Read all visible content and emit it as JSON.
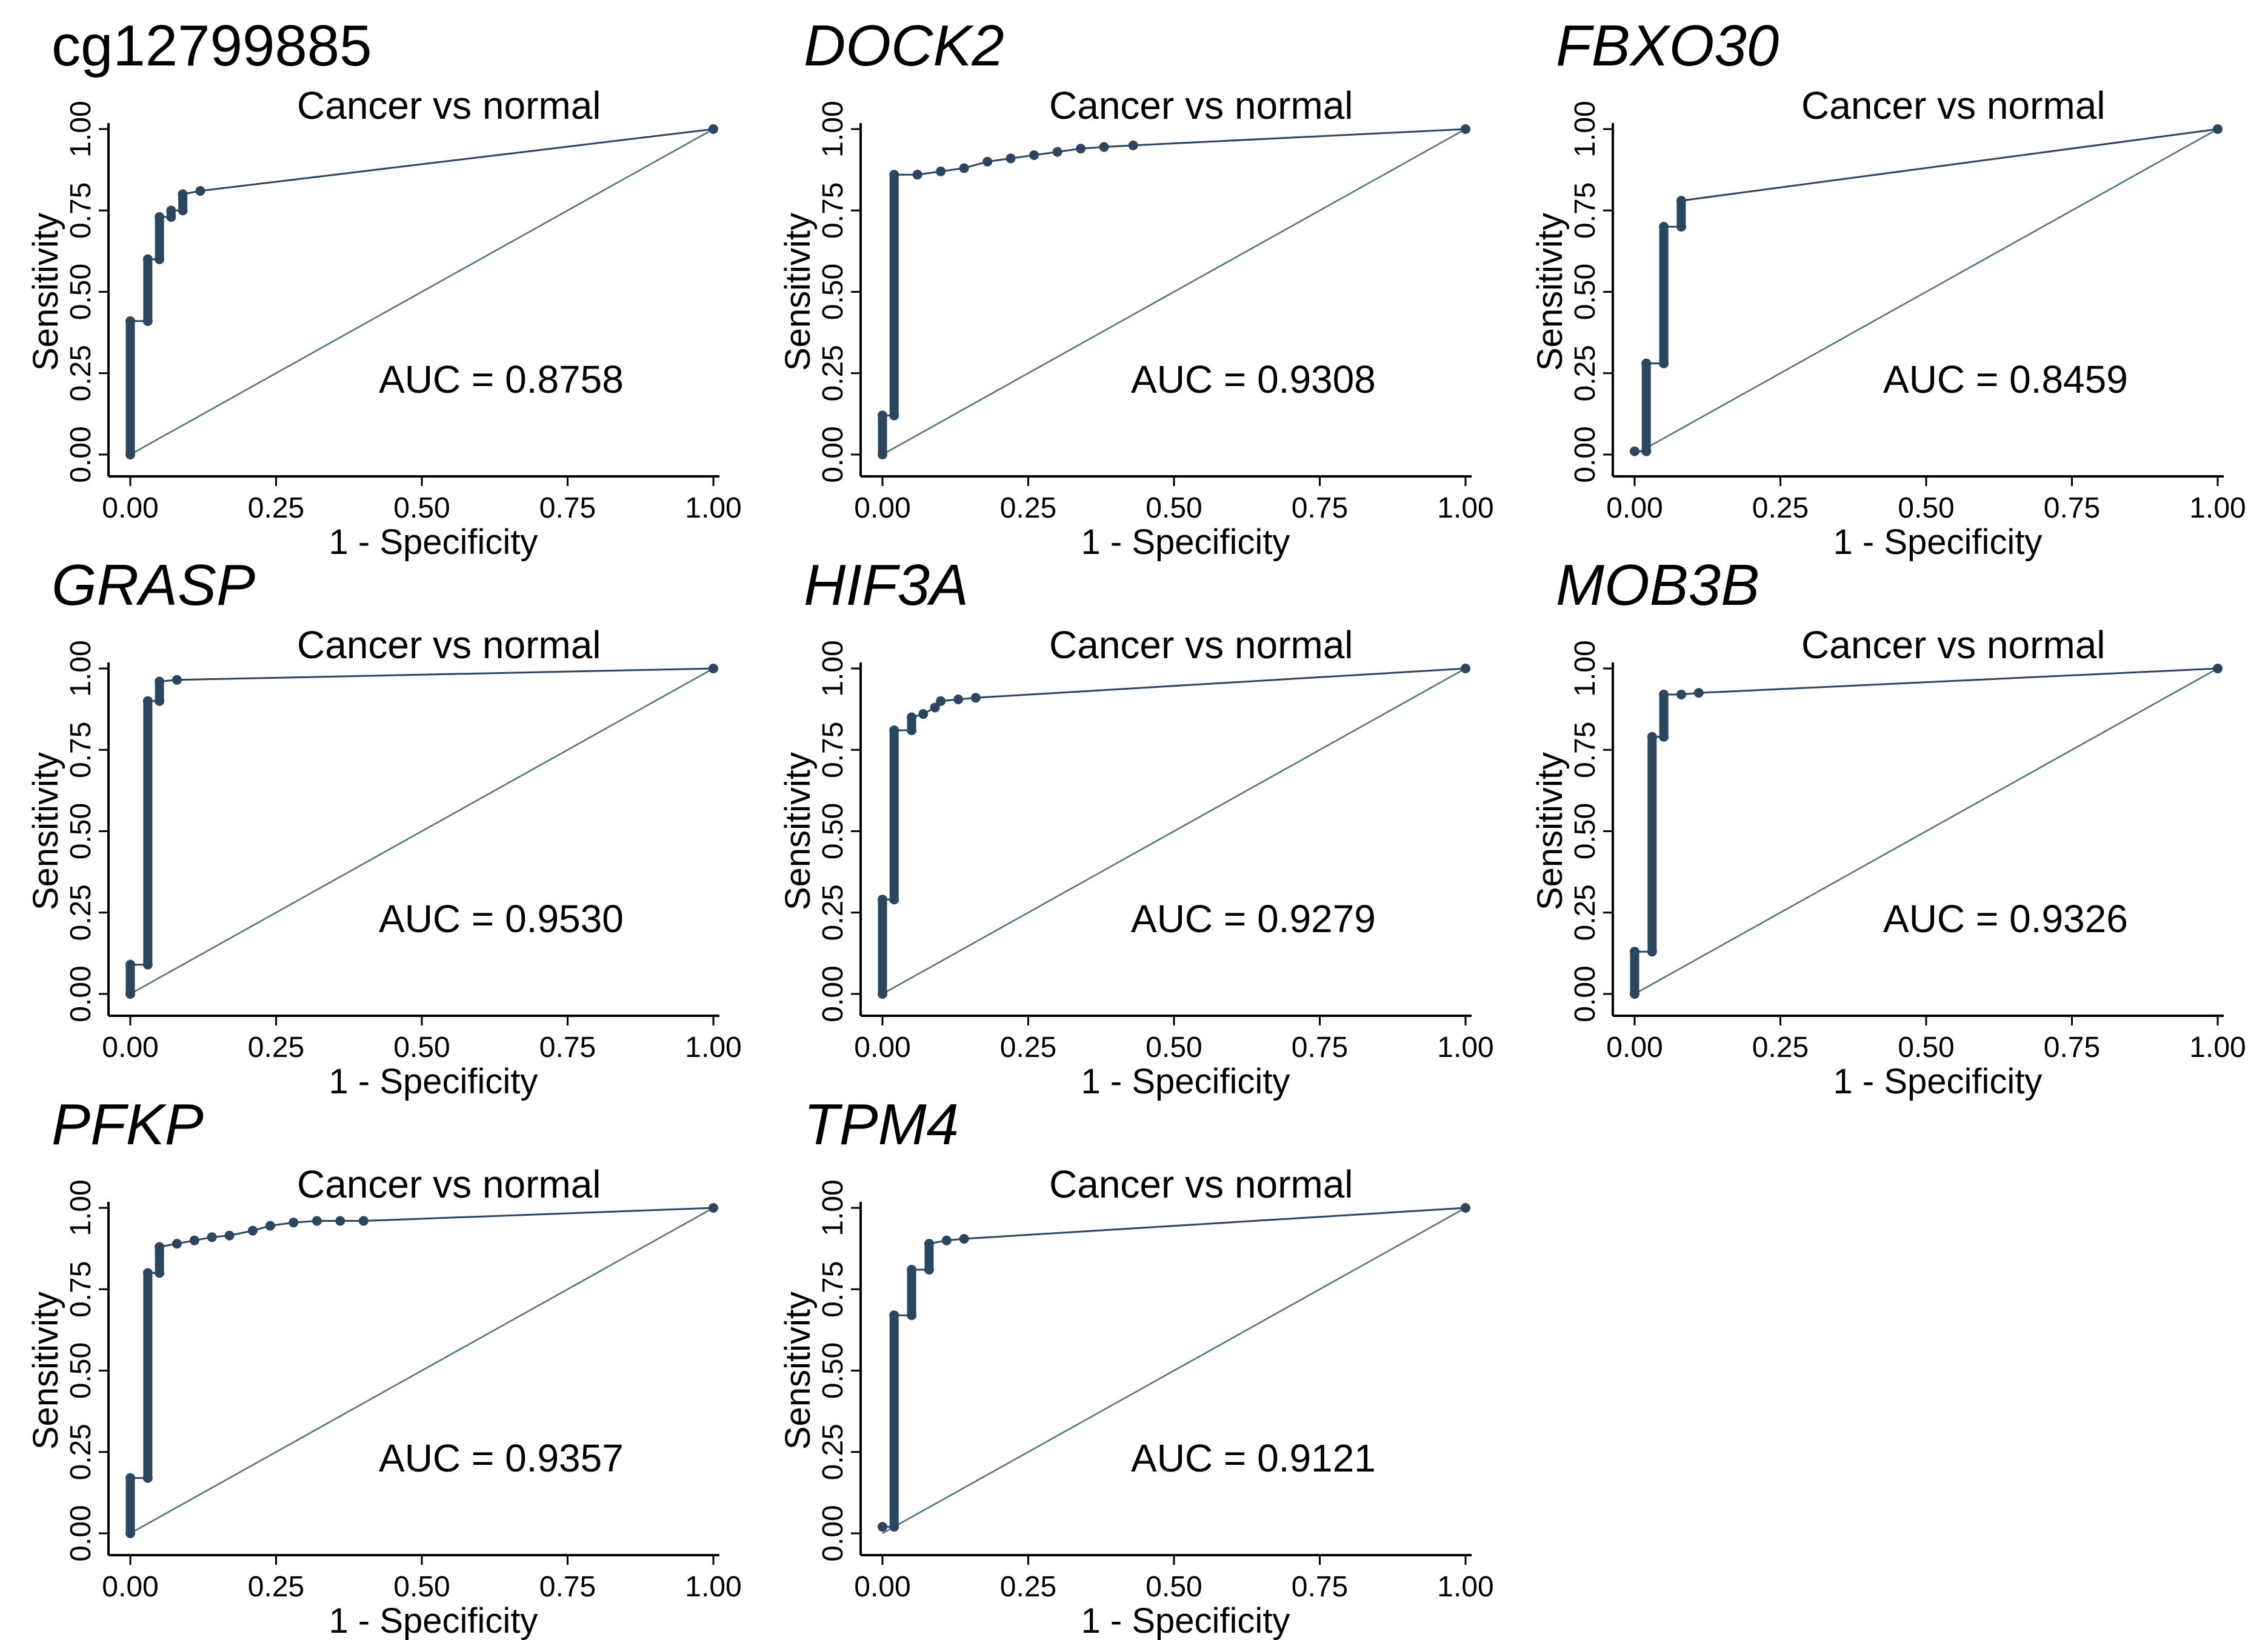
{
  "figure": {
    "colors": {
      "curve": "#2d4660",
      "diagonal": "#4f6f7d",
      "axis": "#000000"
    },
    "axis_ticks": [
      "0.00",
      "0.25",
      "0.50",
      "0.75",
      "1.00"
    ],
    "xlabel": "1 - Specificity",
    "ylabel": "Sensitivity"
  },
  "chart_data": [
    {
      "type": "line",
      "title": "cg12799885",
      "title_italic": false,
      "subtitle": "Cancer vs normal",
      "auc_text": "AUC = 0.8758",
      "xlabel": "1 - Specificity",
      "ylabel": "Sensitivity",
      "xlim": [
        0,
        1
      ],
      "ylim": [
        0,
        1
      ],
      "points": [
        [
          0,
          0
        ],
        [
          0,
          0.41
        ],
        [
          0.03,
          0.41
        ],
        [
          0.03,
          0.6
        ],
        [
          0.05,
          0.6
        ],
        [
          0.05,
          0.73
        ],
        [
          0.07,
          0.73
        ],
        [
          0.07,
          0.75
        ],
        [
          0.09,
          0.75
        ],
        [
          0.09,
          0.8
        ],
        [
          0.12,
          0.81
        ],
        [
          1,
          1
        ]
      ],
      "series": [
        {
          "name": "ROC",
          "values": "points"
        },
        {
          "name": "Reference",
          "values": [
            [
              0,
              0
            ],
            [
              1,
              1
            ]
          ]
        }
      ]
    },
    {
      "type": "line",
      "title": "DOCK2",
      "title_italic": true,
      "subtitle": "Cancer vs normal",
      "auc_text": "AUC = 0.9308",
      "xlabel": "1 - Specificity",
      "ylabel": "Sensitivity",
      "xlim": [
        0,
        1
      ],
      "ylim": [
        0,
        1
      ],
      "points": [
        [
          0,
          0
        ],
        [
          0,
          0.12
        ],
        [
          0.02,
          0.12
        ],
        [
          0.02,
          0.86
        ],
        [
          0.06,
          0.86
        ],
        [
          0.1,
          0.87
        ],
        [
          0.14,
          0.88
        ],
        [
          0.18,
          0.9
        ],
        [
          0.22,
          0.91
        ],
        [
          0.26,
          0.92
        ],
        [
          0.3,
          0.93
        ],
        [
          0.34,
          0.94
        ],
        [
          0.38,
          0.945
        ],
        [
          0.43,
          0.95
        ],
        [
          1,
          1
        ]
      ],
      "series": [
        {
          "name": "ROC",
          "values": "points"
        },
        {
          "name": "Reference",
          "values": [
            [
              0,
              0
            ],
            [
              1,
              1
            ]
          ]
        }
      ]
    },
    {
      "type": "line",
      "title": "FBXO30",
      "title_italic": true,
      "subtitle": "Cancer vs normal",
      "auc_text": "AUC = 0.8459",
      "xlabel": "1 - Specificity",
      "ylabel": "Sensitivity",
      "xlim": [
        0,
        1
      ],
      "ylim": [
        0,
        1
      ],
      "points": [
        [
          0,
          0.01
        ],
        [
          0.02,
          0.01
        ],
        [
          0.02,
          0.28
        ],
        [
          0.05,
          0.28
        ],
        [
          0.05,
          0.7
        ],
        [
          0.08,
          0.7
        ],
        [
          0.08,
          0.78
        ],
        [
          1,
          1
        ]
      ],
      "series": [
        {
          "name": "ROC",
          "values": "points"
        },
        {
          "name": "Reference",
          "values": [
            [
              0,
              0
            ],
            [
              1,
              1
            ]
          ]
        }
      ]
    },
    {
      "type": "line",
      "title": "GRASP",
      "title_italic": true,
      "subtitle": "Cancer vs normal",
      "auc_text": "AUC = 0.9530",
      "xlabel": "1 - Specificity",
      "ylabel": "Sensitivity",
      "xlim": [
        0,
        1
      ],
      "ylim": [
        0,
        1
      ],
      "points": [
        [
          0,
          0
        ],
        [
          0,
          0.09
        ],
        [
          0.03,
          0.09
        ],
        [
          0.03,
          0.9
        ],
        [
          0.05,
          0.9
        ],
        [
          0.05,
          0.96
        ],
        [
          0.08,
          0.965
        ],
        [
          1,
          1
        ]
      ],
      "series": [
        {
          "name": "ROC",
          "values": "points"
        },
        {
          "name": "Reference",
          "values": [
            [
              0,
              0
            ],
            [
              1,
              1
            ]
          ]
        }
      ]
    },
    {
      "type": "line",
      "title": "HIF3A",
      "title_italic": true,
      "subtitle": "Cancer vs normal",
      "auc_text": "AUC = 0.9279",
      "xlabel": "1 - Specificity",
      "ylabel": "Sensitivity",
      "xlim": [
        0,
        1
      ],
      "ylim": [
        0,
        1
      ],
      "points": [
        [
          0,
          0
        ],
        [
          0,
          0.29
        ],
        [
          0.02,
          0.29
        ],
        [
          0.02,
          0.81
        ],
        [
          0.05,
          0.81
        ],
        [
          0.05,
          0.85
        ],
        [
          0.07,
          0.86
        ],
        [
          0.09,
          0.88
        ],
        [
          0.1,
          0.9
        ],
        [
          0.13,
          0.905
        ],
        [
          0.16,
          0.91
        ],
        [
          1,
          1
        ]
      ],
      "series": [
        {
          "name": "ROC",
          "values": "points"
        },
        {
          "name": "Reference",
          "values": [
            [
              0,
              0
            ],
            [
              1,
              1
            ]
          ]
        }
      ]
    },
    {
      "type": "line",
      "title": "MOB3B",
      "title_italic": true,
      "subtitle": "Cancer vs normal",
      "auc_text": "AUC = 0.9326",
      "xlabel": "1 - Specificity",
      "ylabel": "Sensitivity",
      "xlim": [
        0,
        1
      ],
      "ylim": [
        0,
        1
      ],
      "points": [
        [
          0,
          0
        ],
        [
          0,
          0.13
        ],
        [
          0.03,
          0.13
        ],
        [
          0.03,
          0.79
        ],
        [
          0.05,
          0.79
        ],
        [
          0.05,
          0.92
        ],
        [
          0.08,
          0.92
        ],
        [
          0.11,
          0.925
        ],
        [
          1,
          1
        ]
      ],
      "series": [
        {
          "name": "ROC",
          "values": "points"
        },
        {
          "name": "Reference",
          "values": [
            [
              0,
              0
            ],
            [
              1,
              1
            ]
          ]
        }
      ]
    },
    {
      "type": "line",
      "title": "PFKP",
      "title_italic": true,
      "subtitle": "Cancer vs normal",
      "auc_text": "AUC = 0.9357",
      "xlabel": "1 - Specificity",
      "ylabel": "Sensitivity",
      "xlim": [
        0,
        1
      ],
      "ylim": [
        0,
        1
      ],
      "points": [
        [
          0,
          0
        ],
        [
          0,
          0.17
        ],
        [
          0.03,
          0.17
        ],
        [
          0.03,
          0.8
        ],
        [
          0.05,
          0.8
        ],
        [
          0.05,
          0.88
        ],
        [
          0.08,
          0.89
        ],
        [
          0.11,
          0.9
        ],
        [
          0.14,
          0.91
        ],
        [
          0.17,
          0.915
        ],
        [
          0.21,
          0.93
        ],
        [
          0.24,
          0.945
        ],
        [
          0.28,
          0.955
        ],
        [
          0.32,
          0.96
        ],
        [
          0.36,
          0.96
        ],
        [
          0.4,
          0.96
        ],
        [
          1,
          1
        ]
      ],
      "series": [
        {
          "name": "ROC",
          "values": "points"
        },
        {
          "name": "Reference",
          "values": [
            [
              0,
              0
            ],
            [
              1,
              1
            ]
          ]
        }
      ]
    },
    {
      "type": "line",
      "title": "TPM4",
      "title_italic": true,
      "subtitle": "Cancer vs normal",
      "auc_text": "AUC = 0.9121",
      "xlabel": "1 - Specificity",
      "ylabel": "Sensitivity",
      "xlim": [
        0,
        1
      ],
      "ylim": [
        0,
        1
      ],
      "points": [
        [
          0,
          0.02
        ],
        [
          0.02,
          0.02
        ],
        [
          0.02,
          0.67
        ],
        [
          0.05,
          0.67
        ],
        [
          0.05,
          0.81
        ],
        [
          0.08,
          0.81
        ],
        [
          0.08,
          0.89
        ],
        [
          0.11,
          0.9
        ],
        [
          0.14,
          0.905
        ],
        [
          1,
          1
        ]
      ],
      "series": [
        {
          "name": "ROC",
          "values": "points"
        },
        {
          "name": "Reference",
          "values": [
            [
              0,
              0
            ],
            [
              1,
              1
            ]
          ]
        }
      ]
    }
  ]
}
